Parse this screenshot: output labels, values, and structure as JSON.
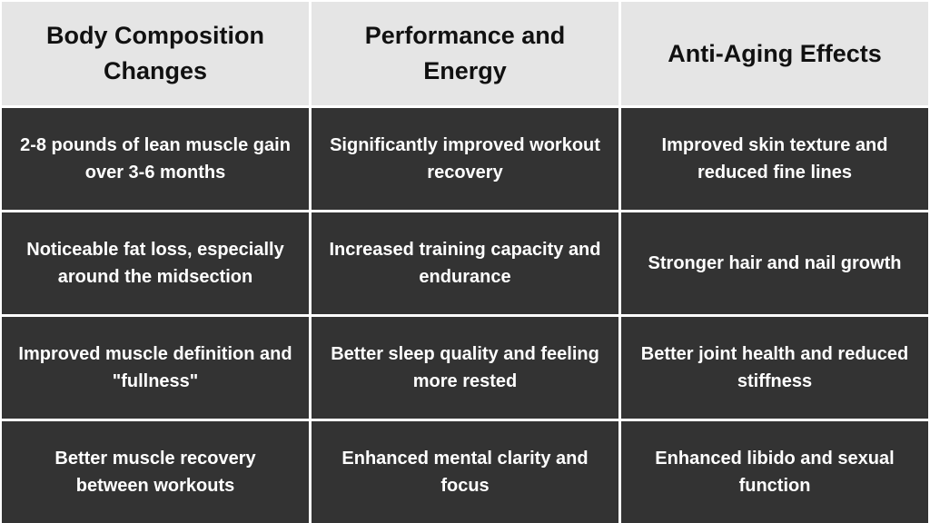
{
  "table": {
    "columns": [
      "Body Composition Changes",
      "Performance and Energy",
      "Anti-Aging Effects"
    ],
    "rows": [
      [
        "2-8 pounds of lean muscle gain over 3-6 months",
        "Significantly improved workout recovery",
        "Improved skin texture and reduced fine lines"
      ],
      [
        "Noticeable fat loss, especially around the midsection",
        "Increased training capacity and endurance",
        "Stronger hair and nail growth"
      ],
      [
        "Improved muscle definition and \"fullness\"",
        "Better sleep quality and feeling more rested",
        "Better joint health and reduced stiffness"
      ],
      [
        "Better muscle recovery between workouts",
        "Enhanced mental clarity and focus",
        "Enhanced libido and sexual function"
      ]
    ]
  }
}
